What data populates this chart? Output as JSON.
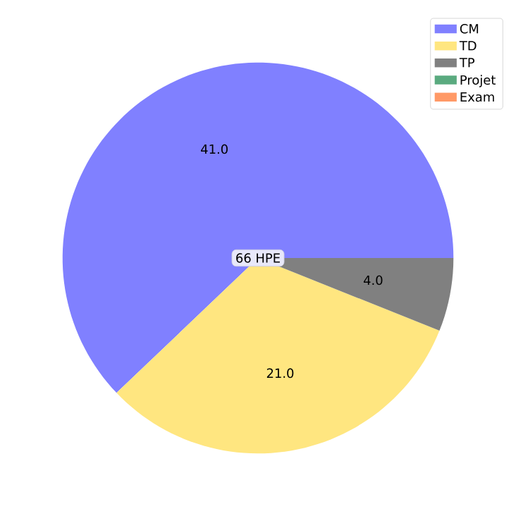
{
  "chart_data": {
    "type": "pie",
    "categories": [
      "CM",
      "TD",
      "TP",
      "Projet",
      "Exam"
    ],
    "values": [
      41,
      21,
      4,
      0,
      0
    ],
    "value_labels": [
      "41.0",
      "21.0",
      "4.0",
      null,
      null
    ],
    "colors": [
      "#8080ff",
      "#ffe680",
      "#808080",
      "#5aaa7f",
      "#ff9966"
    ],
    "annotations": [
      "66 HPE"
    ],
    "legend": "top right"
  }
}
